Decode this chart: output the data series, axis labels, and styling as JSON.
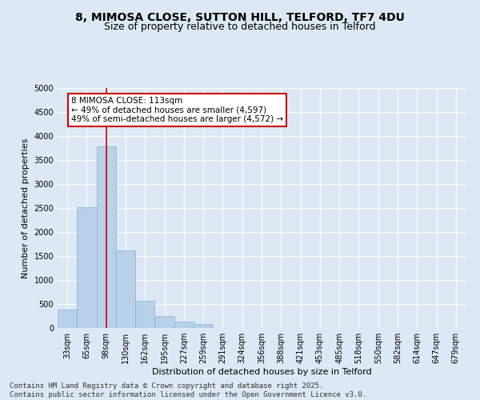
{
  "title_line1": "8, MIMOSA CLOSE, SUTTON HILL, TELFORD, TF7 4DU",
  "title_line2": "Size of property relative to detached houses in Telford",
  "xlabel": "Distribution of detached houses by size in Telford",
  "ylabel": "Number of detached properties",
  "categories": [
    "33sqm",
    "65sqm",
    "98sqm",
    "130sqm",
    "162sqm",
    "195sqm",
    "227sqm",
    "259sqm",
    "291sqm",
    "324sqm",
    "356sqm",
    "388sqm",
    "421sqm",
    "453sqm",
    "485sqm",
    "518sqm",
    "550sqm",
    "582sqm",
    "614sqm",
    "647sqm",
    "679sqm"
  ],
  "values": [
    390,
    2520,
    3780,
    1620,
    560,
    250,
    130,
    80,
    0,
    0,
    0,
    0,
    0,
    0,
    0,
    0,
    0,
    0,
    0,
    0,
    0
  ],
  "bar_color": "#b8d0e8",
  "bar_edge_color": "#8ab0d0",
  "vline_x": 2,
  "vline_color": "#cc0000",
  "annotation_text": "8 MIMOSA CLOSE: 113sqm\n← 49% of detached houses are smaller (4,597)\n49% of semi-detached houses are larger (4,572) →",
  "annotation_box_color": "#ffffff",
  "annotation_box_edge_color": "#cc0000",
  "ylim": [
    0,
    5000
  ],
  "yticks": [
    0,
    500,
    1000,
    1500,
    2000,
    2500,
    3000,
    3500,
    4000,
    4500,
    5000
  ],
  "bg_color": "#dce9f5",
  "plot_bg_color": "#dce9f5",
  "footer_line1": "Contains HM Land Registry data © Crown copyright and database right 2025.",
  "footer_line2": "Contains public sector information licensed under the Open Government Licence v3.0.",
  "title_fontsize": 10,
  "subtitle_fontsize": 9,
  "axis_label_fontsize": 8,
  "tick_fontsize": 7,
  "annotation_fontsize": 7.5,
  "footer_fontsize": 6.5
}
